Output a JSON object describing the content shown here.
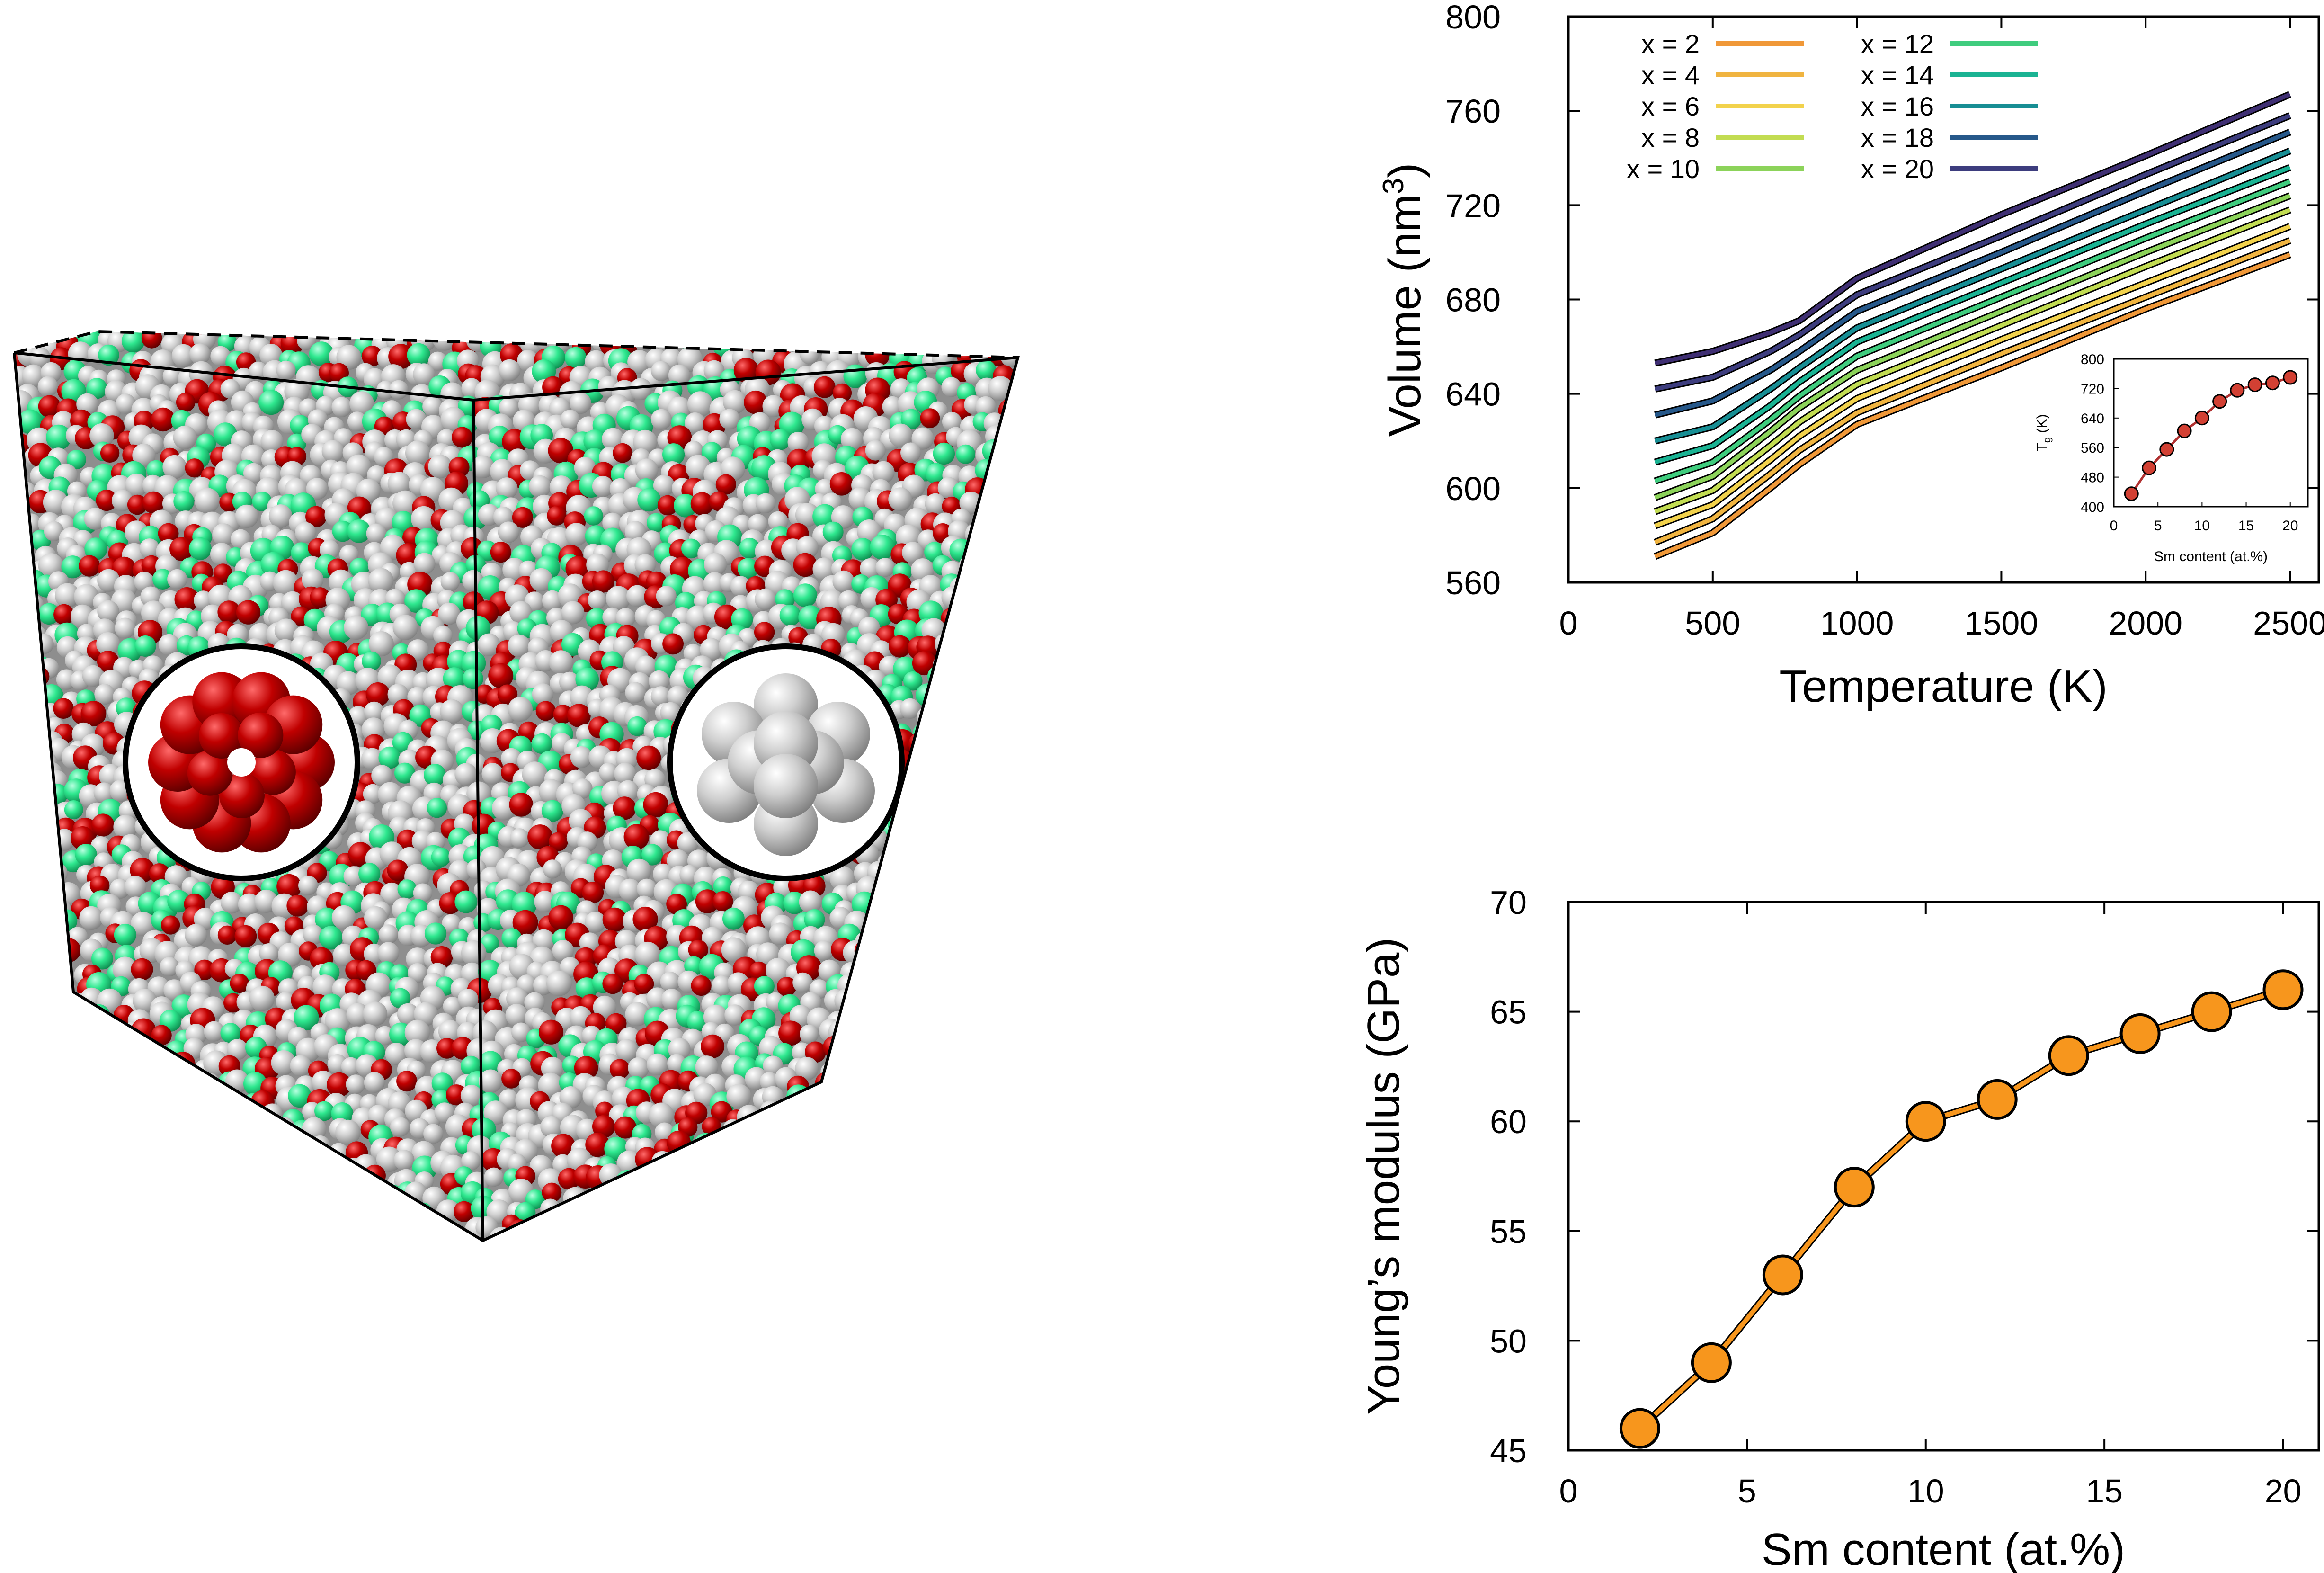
{
  "figure": {
    "colors": {
      "atom_red": "#c00000",
      "atom_green": "#33f598",
      "atom_grey": "#c9c9c9",
      "marker_orange": "#f7961d"
    },
    "icons": [
      "atom-cube-illustration",
      "red-cluster-icon",
      "grey-cluster-icon"
    ]
  },
  "chart_data": [
    {
      "type": "line",
      "xlabel": "Temperature (K)",
      "ylabel_main": "Volume (nm",
      "ylabel_sup": "3",
      "ylabel_close": ")",
      "xlim": [
        0,
        2600
      ],
      "ylim": [
        560,
        800
      ],
      "xticks": [
        0,
        500,
        1000,
        1500,
        2000,
        2500
      ],
      "yticks": [
        560,
        600,
        640,
        680,
        720,
        760,
        800
      ],
      "legend_position": "top-left",
      "x_range_of_lines": [
        300,
        2500
      ],
      "series": [
        {
          "name": "x = 2",
          "color": "#f09838",
          "points": [
            [
              300,
              571
            ],
            [
              500,
              581
            ],
            [
              700,
              600
            ],
            [
              800,
              610
            ],
            [
              1000,
              627
            ],
            [
              1500,
              651
            ],
            [
              2000,
              676
            ],
            [
              2500,
              699
            ]
          ]
        },
        {
          "name": "x = 4",
          "color": "#f0b440",
          "points": [
            [
              300,
              577
            ],
            [
              500,
              587
            ],
            [
              700,
              606
            ],
            [
              800,
              616
            ],
            [
              1000,
              632
            ],
            [
              1500,
              657
            ],
            [
              2000,
              681
            ],
            [
              2500,
              705
            ]
          ]
        },
        {
          "name": "x = 6",
          "color": "#f2d24c",
          "points": [
            [
              300,
              584
            ],
            [
              500,
              593
            ],
            [
              700,
              612
            ],
            [
              800,
              622
            ],
            [
              1000,
              638
            ],
            [
              1500,
              663
            ],
            [
              2000,
              687
            ],
            [
              2500,
              711
            ]
          ]
        },
        {
          "name": "x = 8",
          "color": "#c2dc52",
          "points": [
            [
              300,
              590
            ],
            [
              500,
              599
            ],
            [
              700,
              618
            ],
            [
              800,
              628
            ],
            [
              1000,
              644
            ],
            [
              1500,
              669
            ],
            [
              2000,
              694
            ],
            [
              2500,
              718
            ]
          ]
        },
        {
          "name": "x = 10",
          "color": "#8cd35a",
          "points": [
            [
              300,
              596
            ],
            [
              500,
              605
            ],
            [
              700,
              624
            ],
            [
              800,
              634
            ],
            [
              1000,
              650
            ],
            [
              1500,
              675
            ],
            [
              2000,
              700
            ],
            [
              2500,
              724
            ]
          ]
        },
        {
          "name": "x = 12",
          "color": "#3fcc7e",
          "points": [
            [
              300,
              603
            ],
            [
              500,
              611
            ],
            [
              700,
              629
            ],
            [
              800,
              639
            ],
            [
              1000,
              656
            ],
            [
              1500,
              681
            ],
            [
              2000,
              706
            ],
            [
              2500,
              730
            ]
          ]
        },
        {
          "name": "x = 14",
          "color": "#1ab393",
          "points": [
            [
              300,
              611
            ],
            [
              500,
              618
            ],
            [
              700,
              635
            ],
            [
              800,
              645
            ],
            [
              1000,
              662
            ],
            [
              1500,
              687
            ],
            [
              2000,
              712
            ],
            [
              2500,
              736
            ]
          ]
        },
        {
          "name": "x = 16",
          "color": "#178e94",
          "points": [
            [
              300,
              620
            ],
            [
              500,
              626
            ],
            [
              700,
              642
            ],
            [
              800,
              651
            ],
            [
              1000,
              668
            ],
            [
              1500,
              693
            ],
            [
              2000,
              718
            ],
            [
              2500,
              743
            ]
          ]
        },
        {
          "name": "x = 18",
          "color": "#26588a",
          "points": [
            [
              300,
              631
            ],
            [
              500,
              637
            ],
            [
              700,
              650
            ],
            [
              800,
              658
            ],
            [
              1000,
              675
            ],
            [
              1500,
              700
            ],
            [
              2000,
              726
            ],
            [
              2500,
              751
            ]
          ]
        },
        {
          "name": "x = 20",
          "color": "#3d3d7e",
          "points": [
            [
              300,
              642
            ],
            [
              500,
              647
            ],
            [
              700,
              658
            ],
            [
              800,
              665
            ],
            [
              1000,
              682
            ],
            [
              1500,
              707
            ],
            [
              2000,
              733
            ],
            [
              2500,
              758
            ]
          ]
        },
        {
          "name": "",
          "color": "#3f2f73",
          "points": [
            [
              300,
              653
            ],
            [
              500,
              658
            ],
            [
              700,
              666
            ],
            [
              800,
              671
            ],
            [
              1000,
              689
            ],
            [
              1500,
              716
            ],
            [
              2000,
              741
            ],
            [
              2500,
              767
            ]
          ]
        }
      ],
      "inset": {
        "type": "line",
        "xlabel": "Sm content (at.%)",
        "ylabel_main": "T",
        "ylabel_sub": "g",
        "ylabel_unit": " (K)",
        "xlim": [
          0,
          22
        ],
        "ylim": [
          400,
          800
        ],
        "xticks": [
          0,
          5,
          10,
          15,
          20
        ],
        "yticks": [
          400,
          480,
          560,
          640,
          720,
          800
        ],
        "marker_color": "#d24033",
        "line_color": "#b03030",
        "x": [
          2,
          4,
          6,
          8,
          10,
          12,
          14,
          16,
          18,
          20
        ],
        "y": [
          435,
          505,
          555,
          605,
          640,
          685,
          715,
          730,
          735,
          750
        ]
      }
    },
    {
      "type": "line",
      "xlabel": "Sm content (at.%)",
      "ylabel": "Young’s modulus (GPa)",
      "xlim": [
        0,
        21
      ],
      "ylim": [
        45,
        70
      ],
      "xticks": [
        0,
        5,
        10,
        15,
        20
      ],
      "yticks": [
        45,
        50,
        55,
        60,
        65,
        70
      ],
      "marker_color": "#f7961d",
      "line_color": "#f7961d",
      "x": [
        2,
        4,
        6,
        8,
        10,
        12,
        14,
        16,
        18,
        20
      ],
      "y": [
        46,
        49,
        53,
        57,
        60,
        61,
        63,
        64,
        65,
        66
      ]
    }
  ]
}
